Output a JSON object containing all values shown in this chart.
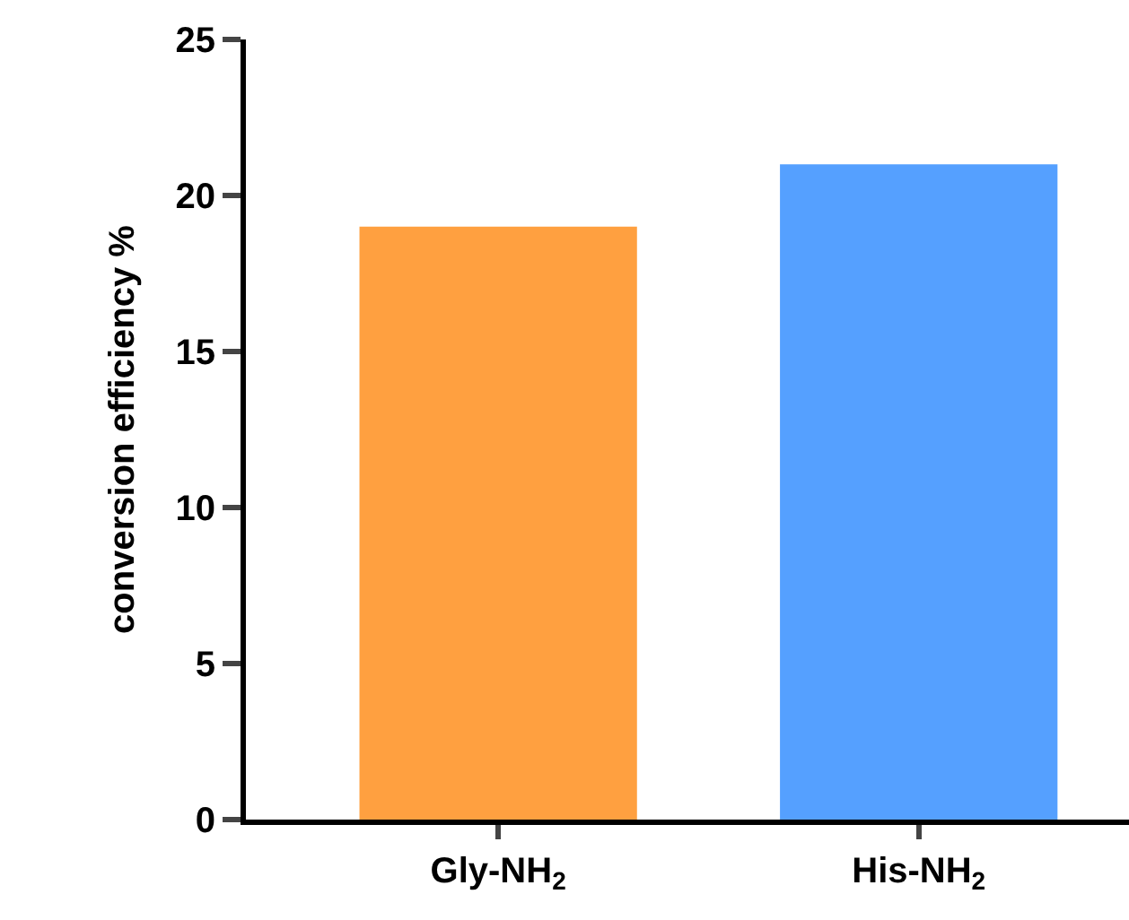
{
  "chart_data": {
    "type": "bar",
    "categories": [
      "Gly-NH$_{2}$",
      "His-NH$_{2}$"
    ],
    "values": [
      19,
      21
    ],
    "colors": [
      "#ffa040",
      "#55a0ff"
    ],
    "ylabel": "conversion efficiency %",
    "ylim": [
      0,
      25
    ],
    "yticks": [
      0,
      5,
      10,
      15,
      20,
      25
    ]
  }
}
